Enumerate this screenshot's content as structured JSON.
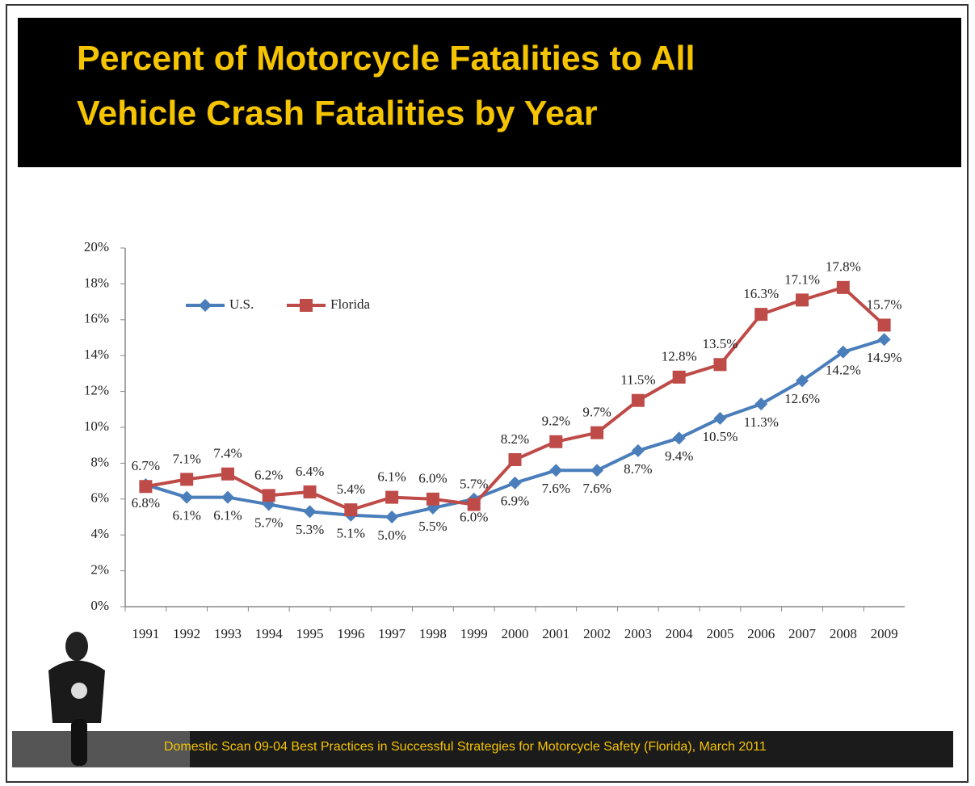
{
  "chart_data": {
    "type": "line",
    "title": [
      "Percent of Motorcycle Fatalities to All",
      "Vehicle Crash Fatalities by Year"
    ],
    "categories": [
      "1991",
      "1992",
      "1993",
      "1994",
      "1995",
      "1996",
      "1997",
      "1998",
      "1999",
      "2000",
      "2001",
      "2002",
      "2003",
      "2004",
      "2005",
      "2006",
      "2007",
      "2008",
      "2009"
    ],
    "series": [
      {
        "name": "U.S.",
        "color": "#4a7ebb",
        "marker": "diamond",
        "values": [
          6.8,
          6.1,
          6.1,
          5.7,
          5.3,
          5.1,
          5.0,
          5.5,
          6.0,
          6.9,
          7.6,
          7.6,
          8.7,
          9.4,
          10.5,
          11.3,
          12.6,
          14.2,
          14.9
        ],
        "value_labels": [
          "6.8%",
          "6.1%",
          "6.1%",
          "5.7%",
          "5.3%",
          "5.1%",
          "5.0%",
          "5.5%",
          "6.0%",
          "6.9%",
          "7.6%",
          "7.6%",
          "8.7%",
          "9.4%",
          "10.5%",
          "11.3%",
          "12.6%",
          "14.2%",
          "14.9%"
        ]
      },
      {
        "name": "Florida",
        "color": "#be4b48",
        "marker": "square",
        "values": [
          6.7,
          7.1,
          7.4,
          6.2,
          6.4,
          5.4,
          6.1,
          6.0,
          5.7,
          8.2,
          9.2,
          9.7,
          11.5,
          12.8,
          13.5,
          16.3,
          17.1,
          17.8,
          15.7
        ],
        "value_labels": [
          "6.7%",
          "7.1%",
          "7.4%",
          "6.2%",
          "6.4%",
          "5.4%",
          "6.1%",
          "6.0%",
          "5.7%",
          "8.2%",
          "9.2%",
          "9.7%",
          "11.5%",
          "12.8%",
          "13.5%",
          "16.3%",
          "17.1%",
          "17.8%",
          "15.7%"
        ]
      }
    ],
    "ylim": [
      0,
      20
    ],
    "yticks": [
      {
        "value": 0,
        "label": "0%"
      },
      {
        "value": 2,
        "label": "2%"
      },
      {
        "value": 4,
        "label": "4%"
      },
      {
        "value": 6,
        "label": "6%"
      },
      {
        "value": 8,
        "label": "8%"
      },
      {
        "value": 10,
        "label": "10%"
      },
      {
        "value": 12,
        "label": "12%"
      },
      {
        "value": 14,
        "label": "14%"
      },
      {
        "value": 16,
        "label": "16%"
      },
      {
        "value": 18,
        "label": "18%"
      },
      {
        "value": 20,
        "label": "20%"
      }
    ],
    "legend": "top-left"
  },
  "footer": "Domestic Scan 09-04 Best Practices in Successful Strategies for Motorcycle Safety (Florida), March 2011"
}
